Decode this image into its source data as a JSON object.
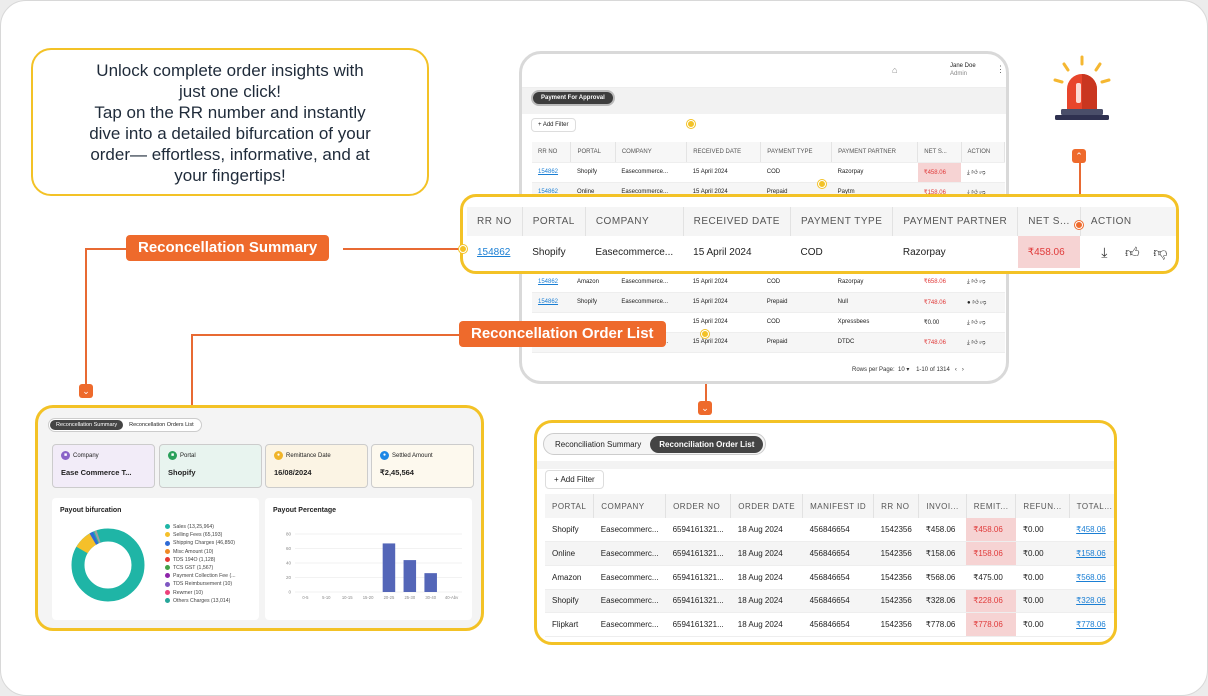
{
  "callout": {
    "lines": [
      "Unlock complete order insights with",
      "just one click!",
      "Tap on the RR number and instantly",
      "dive into a detailed bifurcation of your",
      "order— effortless, informative, and at",
      "your fingertips!"
    ]
  },
  "labels": {
    "summary": "Reconcellation Summary",
    "order_list": "Reconcellation Order List"
  },
  "colors": {
    "accent": "#ee6a2c",
    "highlight": "#f3c226",
    "net_red": "#e03a3a",
    "link": "#1b7fd4"
  },
  "tablet": {
    "user_name": "Jane Doe",
    "user_role": "Admin",
    "tab_label": "Payment For Approval",
    "add_filter": "Add Filter",
    "columns": [
      "RR NO",
      "PORTAL",
      "COMPANY",
      "RECEIVED DATE",
      "PAYMENT TYPE",
      "PAYMENT PARTNER",
      "NET S...",
      "ACTION"
    ],
    "rows_top": [
      {
        "rr": "154862",
        "portal": "Shopify",
        "company": "Easecommerce...",
        "date": "15 April 2024",
        "type": "COD",
        "partner": "Razorpay",
        "net": "₹458.06"
      },
      {
        "rr": "154862",
        "portal": "Online",
        "company": "Easecommerce...",
        "date": "15 April 2024",
        "type": "Prepaid",
        "partner": "Paytm",
        "net": "₹158.06"
      }
    ],
    "rows_bottom": [
      {
        "rr": "154862",
        "portal": "Amazon",
        "company": "Easecommerce...",
        "date": "15 April 2024",
        "type": "COD",
        "partner": "Razorpay",
        "net": "₹658.06"
      },
      {
        "rr": "154862",
        "portal": "Shopify",
        "company": "Easecommerce...",
        "date": "15 April 2024",
        "type": "Prepaid",
        "partner": "Null",
        "net": "₹748.06"
      },
      {
        "rr": "",
        "portal": "",
        "company": "",
        "date": "15 April 2024",
        "type": "COD",
        "partner": "Xpressbees",
        "net": "₹0.00"
      },
      {
        "rr": "154862",
        "portal": "Shopify",
        "company": "Easecommerce...",
        "date": "15 April 2024",
        "type": "Prepaid",
        "partner": "DTDC",
        "net": "₹748.06"
      }
    ],
    "rows_per_page_label": "Rows per Page:",
    "rows_per_page": "10",
    "range": "1-10 of 1314"
  },
  "zoom": {
    "columns": [
      "RR NO",
      "PORTAL",
      "COMPANY",
      "RECEIVED DATE",
      "PAYMENT TYPE",
      "PAYMENT PARTNER",
      "NET S...",
      "ACTION"
    ],
    "row": {
      "rr": "154862",
      "portal": "Shopify",
      "company": "Easecommerce...",
      "date": "15 April 2024",
      "type": "COD",
      "partner": "Razorpay",
      "net": "₹458.06"
    }
  },
  "summary": {
    "tabs": [
      "Reconcellation Summary",
      "Reconcellation Orders List"
    ],
    "kpis": [
      {
        "label": "Company",
        "value": "Ease Commerce T...",
        "bg": "#f2ecf8",
        "icon": "#8a63c8"
      },
      {
        "label": "Portal",
        "value": "Shopify",
        "bg": "#e8f4ef",
        "icon": "#2aa05a"
      },
      {
        "label": "Remittance Date",
        "value": "16/08/2024",
        "bg": "#fbf4e4",
        "icon": "#f0b429"
      },
      {
        "label": "Settled Amount",
        "value": "₹2,45,564",
        "bg": "#fdf9ee",
        "icon": "#1e88e5"
      }
    ],
    "payout_title": "Payout bifurcation",
    "legend": [
      {
        "name": "Sales (13,25,964)",
        "color": "#1fb5a6"
      },
      {
        "name": "Selling Fees (65,193)",
        "color": "#f5c02a"
      },
      {
        "name": "Shipping Charges (46,850)",
        "color": "#2f6bd6"
      },
      {
        "name": "Misc Amount (10)",
        "color": "#f08a24"
      },
      {
        "name": "TDS 194O (1,128)",
        "color": "#e53935"
      },
      {
        "name": "TCS GST (1,567)",
        "color": "#43a047"
      },
      {
        "name": "Payment Collection Fee (...",
        "color": "#8e24aa"
      },
      {
        "name": "TDS Reimbursement (10)",
        "color": "#7e57c2"
      },
      {
        "name": "Rewmer (10)",
        "color": "#ec407a"
      },
      {
        "name": "Others Charges (13,014)",
        "color": "#26a69a"
      }
    ],
    "percent_title": "Payout Percentage",
    "chart_data": {
      "type": "bar",
      "categories": [
        "0-5",
        "5-10",
        "10-15",
        "15-20",
        "20-25",
        "25-30",
        "30-40",
        "40-Abv"
      ],
      "values": [
        0,
        0,
        0,
        0,
        67,
        44,
        26,
        0
      ],
      "ylim": [
        0,
        80
      ],
      "yticks": [
        "0",
        "20",
        "40",
        "60",
        "80"
      ]
    }
  },
  "orders": {
    "tabs": [
      "Reconciliation Summary",
      "Reconciliation Order List"
    ],
    "add_filter": "Add Filter",
    "columns": [
      "PORTAL",
      "COMPANY",
      "ORDER NO",
      "ORDER DATE",
      "MANIFEST ID",
      "RR NO",
      "INVOI...",
      "REMIT...",
      "REFUN...",
      "TOTAL..."
    ],
    "rows": [
      {
        "portal": "Shopify",
        "company": "Easecommerc...",
        "order": "6594161321...",
        "date": "18 Aug 2024",
        "manifest": "456846654",
        "rr": "1542356",
        "inv": "₹458.06",
        "remit": "₹458.06",
        "remit_red": true,
        "refund": "₹0.00",
        "total": "₹458.06"
      },
      {
        "portal": "Online",
        "company": "Easecommerc...",
        "order": "6594161321...",
        "date": "18 Aug 2024",
        "manifest": "456846654",
        "rr": "1542356",
        "inv": "₹158.06",
        "remit": "₹158.06",
        "remit_red": true,
        "refund": "₹0.00",
        "total": "₹158.06"
      },
      {
        "portal": "Amazon",
        "company": "Easecommerc...",
        "order": "6594161321...",
        "date": "18 Aug 2024",
        "manifest": "456846654",
        "rr": "1542356",
        "inv": "₹568.06",
        "remit": "₹475.00",
        "remit_red": false,
        "refund": "₹0.00",
        "total": "₹568.06"
      },
      {
        "portal": "Shopify",
        "company": "Easecommerc...",
        "order": "6594161321...",
        "date": "18 Aug 2024",
        "manifest": "456846654",
        "rr": "1542356",
        "inv": "₹328.06",
        "remit": "₹228.06",
        "remit_red": true,
        "refund": "₹0.00",
        "total": "₹328.06"
      },
      {
        "portal": "Flipkart",
        "company": "Easecommerc...",
        "order": "6594161321...",
        "date": "18 Aug 2024",
        "manifest": "456846654",
        "rr": "1542356",
        "inv": "₹778.06",
        "remit": "₹778.06",
        "remit_red": true,
        "refund": "₹0.00",
        "total": "₹778.06"
      }
    ]
  }
}
